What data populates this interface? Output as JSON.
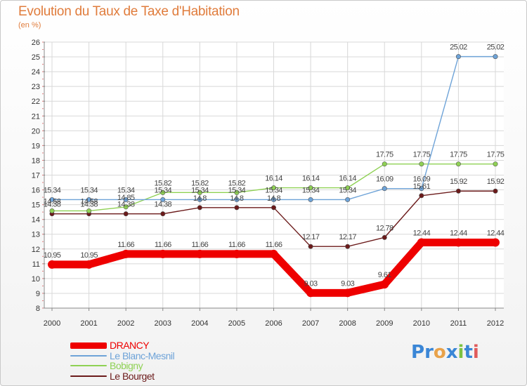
{
  "title": "Evolution du Taux de Taxe d'Habitation",
  "subtitle": "(en %)",
  "logo": {
    "text": "Proxiti",
    "letters": [
      [
        "P",
        "#3a86d6"
      ],
      [
        "r",
        "#3a86d6"
      ],
      [
        "o",
        "#e8a24a"
      ],
      [
        "x",
        "#3a86d6"
      ],
      [
        "i",
        "#7cc242"
      ],
      [
        "t",
        "#3a86d6"
      ],
      [
        "i",
        "#e05b5b"
      ]
    ]
  },
  "chart_data": {
    "type": "line",
    "title": "Evolution du Taux de Taxe d'Habitation",
    "ylabel": "(en %)",
    "xlabel": "",
    "x": [
      "2000",
      "2001",
      "2002",
      "2003",
      "2004",
      "2005",
      "2006",
      "2007",
      "2008",
      "2009",
      "2010",
      "2011",
      "2012"
    ],
    "ylim": [
      8,
      26
    ],
    "yticks": [
      8,
      9,
      10,
      11,
      12,
      13,
      14,
      15,
      16,
      17,
      18,
      19,
      20,
      21,
      22,
      23,
      24,
      25,
      26
    ],
    "grid": true,
    "legend_position": "bottom-left",
    "series": [
      {
        "name": "DRANCY",
        "color": "#ee0000",
        "values": [
          10.95,
          10.95,
          11.66,
          11.66,
          11.66,
          11.66,
          11.66,
          9.03,
          9.03,
          9.61,
          12.44,
          12.44,
          12.44
        ],
        "labels": [
          "10.95",
          "10.95",
          "11.66",
          "11.66",
          "11.66",
          "11.66",
          "11.66",
          "9.03",
          "9.03",
          "9.61",
          "12.44",
          "12.44",
          "12.44"
        ]
      },
      {
        "name": "Le Blanc-Mesnil",
        "color": "#6ea3d8",
        "values": [
          15.34,
          15.34,
          15.34,
          15.34,
          15.34,
          15.34,
          15.34,
          15.34,
          15.34,
          16.09,
          16.09,
          25.02,
          25.02
        ],
        "labels": [
          "15.34",
          "15.34",
          "15.34",
          "15.34",
          "15.34",
          "15.34",
          "15.34",
          "15.34",
          "15.34",
          "16.09",
          "16.09",
          "25.02",
          "25.02"
        ]
      },
      {
        "name": "Bobigny",
        "color": "#8fd154",
        "values": [
          14.58,
          14.58,
          14.85,
          15.82,
          15.82,
          15.82,
          16.14,
          16.14,
          16.14,
          17.75,
          17.75,
          17.75,
          17.75
        ],
        "labels": [
          "14.58",
          "14.58",
          "14.85",
          "15.82",
          "15.82",
          "15.82",
          "16.14",
          "16.14",
          "16.14",
          "17.75",
          "17.75",
          "17.75",
          "17.75"
        ]
      },
      {
        "name": "Le Bourget",
        "color": "#6b1a1a",
        "values": [
          14.38,
          14.38,
          14.38,
          14.38,
          14.8,
          14.8,
          14.8,
          12.17,
          12.17,
          12.78,
          15.61,
          15.92,
          15.92
        ],
        "labels": [
          "14.38",
          "14.38",
          "14.38",
          "14.38",
          "14.8",
          "14.8",
          "14.8",
          "12.17",
          "12.17",
          "12.78",
          "15.61",
          "15.92",
          "15.92"
        ]
      }
    ]
  }
}
